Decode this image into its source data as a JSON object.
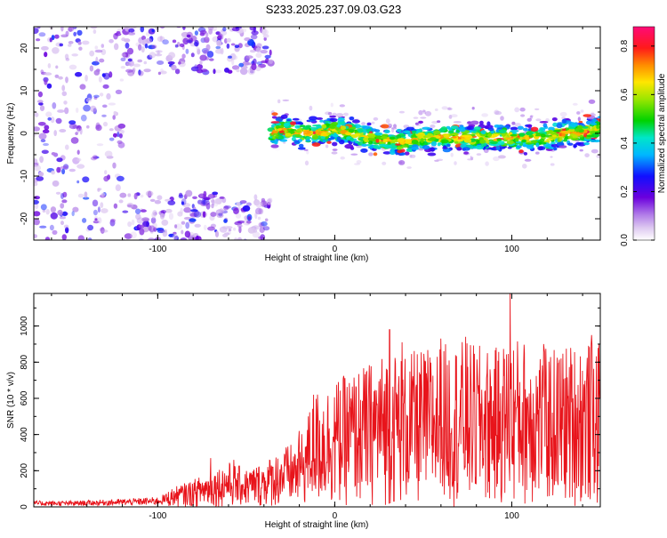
{
  "title": "S233.2025.237.09.03.G23",
  "chart_data": [
    {
      "type": "heatmap",
      "xlabel": "Height of straight line (km)",
      "ylabel": "Frequency (Hz)",
      "xlim": [
        -170,
        150
      ],
      "ylim": [
        -25,
        25
      ],
      "xticks": [
        -100,
        0,
        100
      ],
      "yticks": [
        -20,
        -10,
        0,
        10,
        20
      ],
      "colorbar": {
        "label": "Normalized spectral amplitude",
        "range": [
          0,
          0.88
        ],
        "ticks": [
          "0.0",
          "0.2",
          "0.4",
          "0.6",
          "0.8"
        ]
      },
      "ridge_frequency_hz": [
        [
          -36,
          0
        ],
        [
          -30,
          1
        ],
        [
          -20,
          0
        ],
        [
          -10,
          0
        ],
        [
          0,
          1
        ],
        [
          10,
          0
        ],
        [
          20,
          -1
        ],
        [
          30,
          -2
        ],
        [
          40,
          -2
        ],
        [
          50,
          -1
        ],
        [
          60,
          -1
        ],
        [
          70,
          -1
        ],
        [
          80,
          -1
        ],
        [
          90,
          -1
        ],
        [
          100,
          -1
        ],
        [
          110,
          -1
        ],
        [
          120,
          -1
        ],
        [
          130,
          0
        ],
        [
          140,
          0
        ],
        [
          148,
          1
        ]
      ],
      "noise_region_km": [
        -170,
        -36
      ],
      "grid": false
    },
    {
      "type": "line",
      "xlabel": "Height of straight line (km)",
      "ylabel": "SNR (10 * v/v)",
      "xlim": [
        -170,
        150
      ],
      "ylim": [
        0,
        1180
      ],
      "xticks": [
        -100,
        0,
        100
      ],
      "yticks": [
        0,
        200,
        400,
        600,
        800,
        1000
      ],
      "line_color": "#e8141b",
      "envelope_snr": [
        [
          -170,
          30
        ],
        [
          -150,
          30
        ],
        [
          -120,
          40
        ],
        [
          -100,
          50
        ],
        [
          -90,
          90
        ],
        [
          -80,
          120
        ],
        [
          -70,
          160
        ],
        [
          -60,
          200
        ],
        [
          -50,
          170
        ],
        [
          -40,
          200
        ],
        [
          -30,
          260
        ],
        [
          -20,
          300
        ],
        [
          -15,
          420
        ],
        [
          -10,
          520
        ],
        [
          0,
          560
        ],
        [
          10,
          600
        ],
        [
          20,
          640
        ],
        [
          30,
          700
        ],
        [
          40,
          680
        ],
        [
          50,
          700
        ],
        [
          60,
          720
        ],
        [
          70,
          740
        ],
        [
          80,
          720
        ],
        [
          90,
          700
        ],
        [
          100,
          760
        ],
        [
          110,
          740
        ],
        [
          120,
          700
        ],
        [
          130,
          720
        ],
        [
          140,
          740
        ],
        [
          150,
          720
        ]
      ],
      "peaks_snr": [
        [
          -70,
          270
        ],
        [
          -57,
          260
        ],
        [
          -20,
          420
        ],
        [
          -12,
          620
        ],
        [
          31,
          980
        ],
        [
          38,
          910
        ],
        [
          60,
          930
        ],
        [
          74,
          940
        ],
        [
          99,
          1180
        ],
        [
          118,
          900
        ],
        [
          145,
          950
        ]
      ],
      "grid": false
    }
  ]
}
